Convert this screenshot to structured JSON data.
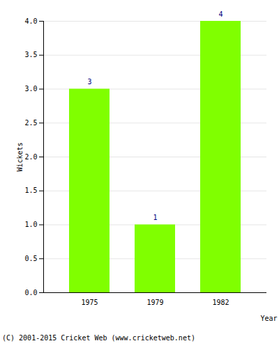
{
  "chart_data": {
    "type": "bar",
    "categories": [
      "1975",
      "1979",
      "1982"
    ],
    "values": [
      3,
      1,
      4
    ],
    "color": "#80ff00",
    "x_label": "Year",
    "y_label": "Wickets",
    "ylim": [
      0,
      4
    ],
    "yticks": [
      {
        "value": 0,
        "label": "0.0"
      },
      {
        "value": 0.5,
        "label": "0.5"
      },
      {
        "value": 1,
        "label": "1.0"
      },
      {
        "value": 1.5,
        "label": "1.5"
      },
      {
        "value": 2,
        "label": "2.0"
      },
      {
        "value": 2.5,
        "label": "2.5"
      },
      {
        "value": 3,
        "label": "3.0"
      },
      {
        "value": 3.5,
        "label": "3.5"
      },
      {
        "value": 4,
        "label": "4.0"
      }
    ],
    "grid": true,
    "data_labels": true,
    "caption": "(C) 2001-2015 Cricket Web (www.cricketweb.net)"
  }
}
